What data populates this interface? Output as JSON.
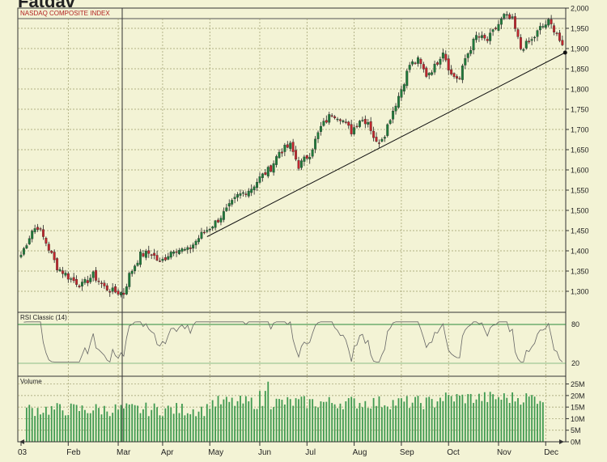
{
  "app": {
    "logo_text": "Fatdav"
  },
  "colors": {
    "background": "#f3f3d5",
    "up": "#1f7a3a",
    "down": "#c0262d",
    "grid": "#9a9a6a",
    "volume": "#3f9a50",
    "rsi_line": "#555555",
    "text": "#222222",
    "title": "#b22222"
  },
  "chart_data": [
    {
      "type": "candlestick",
      "title": "NASDAQ COMPOSITE INDEX",
      "x_months": [
        "03",
        "Feb",
        "Mar",
        "Apr",
        "May",
        "Jun",
        "Jul",
        "Aug",
        "Sep",
        "Oct",
        "Nov",
        "Dec"
      ],
      "y_ticks": [
        "1,300",
        "1,350",
        "1,400",
        "1,450",
        "1,500",
        "1,550",
        "1,600",
        "1,650",
        "1,700",
        "1,750",
        "1,800",
        "1,850",
        "1,900",
        "1,950",
        "2,000"
      ],
      "ylim": [
        1250,
        2000
      ],
      "close_waypoints": [
        [
          0,
          1390
        ],
        [
          4,
          1450
        ],
        [
          6,
          1460
        ],
        [
          9,
          1420
        ],
        [
          13,
          1360
        ],
        [
          18,
          1330
        ],
        [
          22,
          1315
        ],
        [
          26,
          1340
        ],
        [
          30,
          1310
        ],
        [
          33,
          1300
        ],
        [
          37,
          1295
        ],
        [
          39,
          1340
        ],
        [
          43,
          1390
        ],
        [
          47,
          1395
        ],
        [
          50,
          1370
        ],
        [
          55,
          1405
        ],
        [
          60,
          1400
        ],
        [
          65,
          1440
        ],
        [
          70,
          1470
        ],
        [
          74,
          1500
        ],
        [
          78,
          1535
        ],
        [
          83,
          1555
        ],
        [
          86,
          1580
        ],
        [
          90,
          1605
        ],
        [
          93,
          1645
        ],
        [
          97,
          1660
        ],
        [
          100,
          1610
        ],
        [
          104,
          1640
        ],
        [
          108,
          1705
        ],
        [
          112,
          1740
        ],
        [
          115,
          1730
        ],
        [
          119,
          1695
        ],
        [
          122,
          1725
        ],
        [
          125,
          1720
        ],
        [
          128,
          1665
        ],
        [
          131,
          1690
        ],
        [
          133,
          1730
        ],
        [
          137,
          1800
        ],
        [
          140,
          1860
        ],
        [
          143,
          1870
        ],
        [
          146,
          1835
        ],
        [
          149,
          1855
        ],
        [
          152,
          1895
        ],
        [
          155,
          1835
        ],
        [
          158,
          1825
        ],
        [
          160,
          1875
        ],
        [
          164,
          1930
        ],
        [
          168,
          1920
        ],
        [
          171,
          1950
        ],
        [
          174,
          1980
        ],
        [
          177,
          1970
        ],
        [
          180,
          1900
        ],
        [
          184,
          1920
        ],
        [
          187,
          1950
        ],
        [
          190,
          1965
        ],
        [
          193,
          1940
        ],
        [
          195,
          1900
        ]
      ],
      "trendline": [
        [
          67,
          1435
        ],
        [
          196,
          1890
        ]
      ]
    },
    {
      "type": "line",
      "title": "RSI Classic (14)",
      "y_ticks": [
        "80",
        "20"
      ],
      "ylim": [
        0,
        100
      ]
    },
    {
      "type": "bar",
      "title": "Volume",
      "y_ticks": [
        "0M",
        "5M",
        "10M",
        "15M",
        "20M",
        "25M"
      ],
      "ylim": [
        0,
        28
      ]
    }
  ]
}
